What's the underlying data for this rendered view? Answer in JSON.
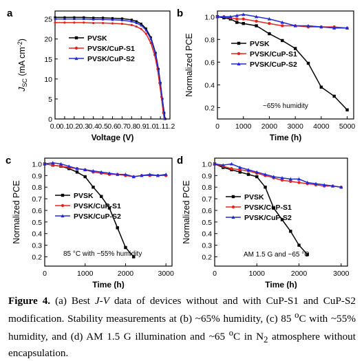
{
  "colors": {
    "PVSK": "#000000",
    "PVSK/CuP-S1": "#e8221b",
    "PVSK/CuP-S2": "#1f2bd6"
  },
  "chart_data": [
    {
      "panel": "a",
      "type": "line",
      "xlabel": "Voltage (V)",
      "ylabel_main": "J",
      "ylabel_sub": "SC",
      "ylabel_unit": " (mA cm",
      "ylabel_exp": "-2",
      "ylabel_close": ")",
      "xlim": [
        0.0,
        1.2
      ],
      "ylim": [
        0,
        27
      ],
      "xticks": [
        "0.0",
        "0.1",
        "0.2",
        "0.3",
        "0.4",
        "0.5",
        "0.6",
        "0.7",
        "0.8",
        "0.9",
        "1.0",
        "1.1",
        "1.2"
      ],
      "yticks": [
        "0",
        "5",
        "10",
        "15",
        "20",
        "25"
      ],
      "legend": [
        "PVSK",
        "PVSK/CuP-S1",
        "PVSK/CuP-S2"
      ],
      "annotation": "",
      "series": [
        {
          "name": "PVSK",
          "x": [
            0,
            0.1,
            0.2,
            0.3,
            0.4,
            0.5,
            0.6,
            0.7,
            0.8,
            0.85,
            0.9,
            0.95,
            1.0,
            1.05,
            1.08,
            1.1,
            1.12,
            1.14,
            1.15
          ],
          "y": [
            25.4,
            25.4,
            25.4,
            25.4,
            25.3,
            25.3,
            25.2,
            25.1,
            24.8,
            24.4,
            23.8,
            22.6,
            20.4,
            16.5,
            12.5,
            9.0,
            5.0,
            1.5,
            0
          ]
        },
        {
          "name": "PVSK/CuP-S1",
          "x": [
            0,
            0.1,
            0.2,
            0.3,
            0.4,
            0.5,
            0.6,
            0.7,
            0.8,
            0.85,
            0.9,
            0.95,
            1.0,
            1.04,
            1.07,
            1.09,
            1.11,
            1.13,
            1.14
          ],
          "y": [
            24.1,
            24.1,
            24.1,
            24.1,
            24.0,
            24.0,
            23.9,
            23.8,
            23.5,
            23.1,
            22.5,
            21.3,
            19.0,
            16.0,
            12.5,
            9.0,
            5.5,
            1.5,
            0
          ]
        },
        {
          "name": "PVSK/CuP-S2",
          "x": [
            0,
            0.1,
            0.2,
            0.3,
            0.4,
            0.5,
            0.6,
            0.7,
            0.8,
            0.85,
            0.9,
            0.95,
            1.0,
            1.05,
            1.08,
            1.1,
            1.12,
            1.135,
            1.145
          ],
          "y": [
            25.0,
            25.0,
            25.0,
            25.0,
            24.9,
            24.9,
            24.8,
            24.7,
            24.4,
            24.0,
            23.4,
            22.2,
            20.0,
            16.2,
            12.2,
            8.8,
            5.0,
            2.0,
            0
          ]
        }
      ]
    },
    {
      "panel": "b",
      "type": "line",
      "xlabel": "Time (h)",
      "ylabel": "Normalized PCE",
      "xlim": [
        0,
        5250
      ],
      "ylim": [
        0.1,
        1.05
      ],
      "xticks": [
        "0",
        "1000",
        "2000",
        "3000",
        "4000",
        "5000"
      ],
      "yticks": [
        "0.2",
        "0.4",
        "0.6",
        "0.8",
        "1.0"
      ],
      "legend": [
        "PVSK",
        "PVSK/CuP-S1",
        "PVSK/CuP-S2"
      ],
      "annotation": "~65% humidity",
      "series": [
        {
          "name": "PVSK",
          "x": [
            0,
            250,
            500,
            750,
            1000,
            1500,
            2000,
            2500,
            3000,
            3500,
            4000,
            4500,
            5000
          ],
          "y": [
            1.0,
            0.99,
            0.98,
            0.95,
            0.94,
            0.92,
            0.85,
            0.79,
            0.72,
            0.59,
            0.38,
            0.3,
            0.18
          ]
        },
        {
          "name": "PVSK/CuP-S1",
          "x": [
            0,
            250,
            500,
            750,
            1000,
            1500,
            2000,
            2500,
            3000,
            3500,
            4000,
            4500,
            5000
          ],
          "y": [
            1.0,
            1.0,
            0.99,
            0.98,
            0.98,
            0.96,
            0.94,
            0.92,
            0.92,
            0.91,
            0.91,
            0.91,
            0.9
          ]
        },
        {
          "name": "PVSK/CuP-S2",
          "x": [
            0,
            250,
            500,
            750,
            1000,
            1500,
            2000,
            2500,
            3000,
            3500,
            4000,
            4500,
            5000
          ],
          "y": [
            1.0,
            1.0,
            1.0,
            1.01,
            1.02,
            1.0,
            0.98,
            0.95,
            0.92,
            0.92,
            0.91,
            0.9,
            0.9
          ]
        }
      ]
    },
    {
      "panel": "c",
      "type": "line",
      "xlabel": "Time (h)",
      "ylabel": "Normalized PCE",
      "xlim": [
        0,
        3150
      ],
      "ylim": [
        0.12,
        1.05
      ],
      "xticks": [
        "0",
        "1000",
        "2000",
        "3000"
      ],
      "yticks": [
        "0.2",
        "0.3",
        "0.4",
        "0.5",
        "0.6",
        "0.7",
        "0.8",
        "0.9",
        "1.0"
      ],
      "legend": [
        "PVSK",
        "PVSK/CuP-S1",
        "PVSK/CuP-S2"
      ],
      "annotation": "85 °C with ~55% humidity",
      "series": [
        {
          "name": "PVSK",
          "x": [
            0,
            200,
            400,
            600,
            800,
            1000,
            1200,
            1400,
            1600,
            1800,
            2000,
            2200
          ],
          "y": [
            1.0,
            0.99,
            0.98,
            0.96,
            0.93,
            0.89,
            0.8,
            0.72,
            0.62,
            0.45,
            0.28,
            0.2
          ]
        },
        {
          "name": "PVSK/CuP-S1",
          "x": [
            0,
            200,
            400,
            600,
            800,
            1000,
            1200,
            1400,
            1600,
            1800,
            2000,
            2200,
            2400,
            2600,
            2800,
            3000
          ],
          "y": [
            1.0,
            0.99,
            0.98,
            0.97,
            0.96,
            0.95,
            0.93,
            0.92,
            0.91,
            0.91,
            0.9,
            0.89,
            0.9,
            0.9,
            0.9,
            0.9
          ]
        },
        {
          "name": "PVSK/CuP-S2",
          "x": [
            0,
            200,
            400,
            600,
            800,
            1000,
            1200,
            1400,
            1600,
            1800,
            2000,
            2200,
            2400,
            2600,
            2800,
            3000
          ],
          "y": [
            1.0,
            1.01,
            1.0,
            0.98,
            0.96,
            0.95,
            0.94,
            0.93,
            0.92,
            0.91,
            0.91,
            0.89,
            0.9,
            0.91,
            0.9,
            0.91
          ]
        }
      ]
    },
    {
      "panel": "d",
      "type": "line",
      "xlabel": "Time (h)",
      "ylabel": "Normalized PCE",
      "xlim": [
        0,
        3150
      ],
      "ylim": [
        0.12,
        1.05
      ],
      "xticks": [
        "0",
        "1000",
        "2000",
        "3000"
      ],
      "yticks": [
        "0.2",
        "0.3",
        "0.4",
        "0.5",
        "0.6",
        "0.7",
        "0.8",
        "0.9",
        "1.0"
      ],
      "legend": [
        "PVSK",
        "PVSK/CuP-S1",
        "PVSK/CuP-S2"
      ],
      "annotation": "AM 1.5 G and ~65 °C",
      "series": [
        {
          "name": "PVSK",
          "x": [
            0,
            200,
            400,
            600,
            800,
            1000,
            1200,
            1400,
            1600,
            1800,
            2000,
            2200
          ],
          "y": [
            1.0,
            0.97,
            0.95,
            0.93,
            0.91,
            0.89,
            0.8,
            0.62,
            0.52,
            0.42,
            0.3,
            0.22
          ]
        },
        {
          "name": "PVSK/CuP-S1",
          "x": [
            0,
            200,
            400,
            600,
            800,
            1000,
            1200,
            1400,
            1600,
            1800,
            2000,
            2200,
            2400,
            2600,
            2800,
            3000
          ],
          "y": [
            1.0,
            0.98,
            0.96,
            0.95,
            0.94,
            0.92,
            0.9,
            0.88,
            0.86,
            0.85,
            0.84,
            0.83,
            0.82,
            0.81,
            0.81,
            0.8
          ]
        },
        {
          "name": "PVSK/CuP-S2",
          "x": [
            0,
            200,
            400,
            600,
            800,
            1000,
            1200,
            1400,
            1600,
            1800,
            2000,
            2200,
            2400,
            2600,
            2800,
            3000
          ],
          "y": [
            1.0,
            0.99,
            1.0,
            0.97,
            0.95,
            0.93,
            0.91,
            0.89,
            0.88,
            0.87,
            0.87,
            0.84,
            0.83,
            0.82,
            0.81,
            0.8
          ]
        }
      ]
    }
  ],
  "caption": {
    "label": "Figure 4.",
    "t1": "  (a) Best ",
    "jv_j": "J",
    "jv_dash": "-",
    "jv_v": "V",
    "t2": " data of devices without and with CuP-S1 and CuP-S2 modification. Stability measurements at (b) ~65% humidity, (c) 85 ",
    "deg1": "o",
    "t3": "C with ~55% humidity, and (d) AM 1.5 G illumination and ~65 ",
    "deg2": "o",
    "t4": "C in N",
    "sub2": "2",
    "t5": " atmosphere without encapsulation."
  }
}
